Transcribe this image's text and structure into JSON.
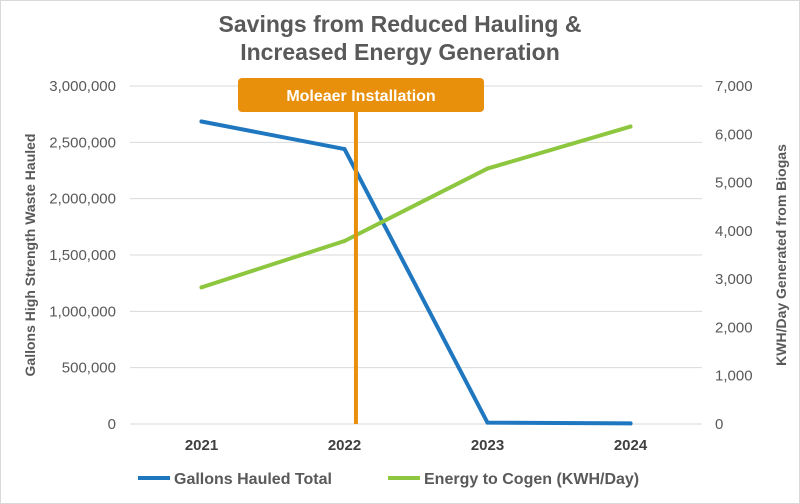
{
  "chart_data": {
    "type": "line",
    "title_line1": "Savings from Reduced Hauling &",
    "title_line2": "Increased Energy Generation",
    "categories": [
      "2021",
      "2022",
      "2023",
      "2024"
    ],
    "series": [
      {
        "name": "Gallons Hauled Total",
        "axis": "left",
        "color": "#1f77c0",
        "values": [
          2685000,
          2440000,
          12000,
          5000
        ]
      },
      {
        "name": "Energy to Cogen (KWH/Day)",
        "axis": "right",
        "color": "#8dc63f",
        "values": [
          2830,
          3790,
          5290,
          6160
        ]
      }
    ],
    "ylabel": "Gallons High Strength Waste Hauled",
    "y2label": "KWH/Day Generated from Biogas",
    "ylim": [
      0,
      3000000
    ],
    "y2lim": [
      0,
      7000
    ],
    "yticks": [
      "0",
      "500,000",
      "1,000,000",
      "1,500,000",
      "2,000,000",
      "2,500,000",
      "3,000,000"
    ],
    "y2ticks": [
      "0",
      "1,000",
      "2,000",
      "3,000",
      "4,000",
      "5,000",
      "6,000",
      "7,000"
    ],
    "grid": true,
    "legend": "bottom",
    "annotation": {
      "label": "Moleaer Installation",
      "category_position": 1.08,
      "color": "#e8900c"
    }
  }
}
